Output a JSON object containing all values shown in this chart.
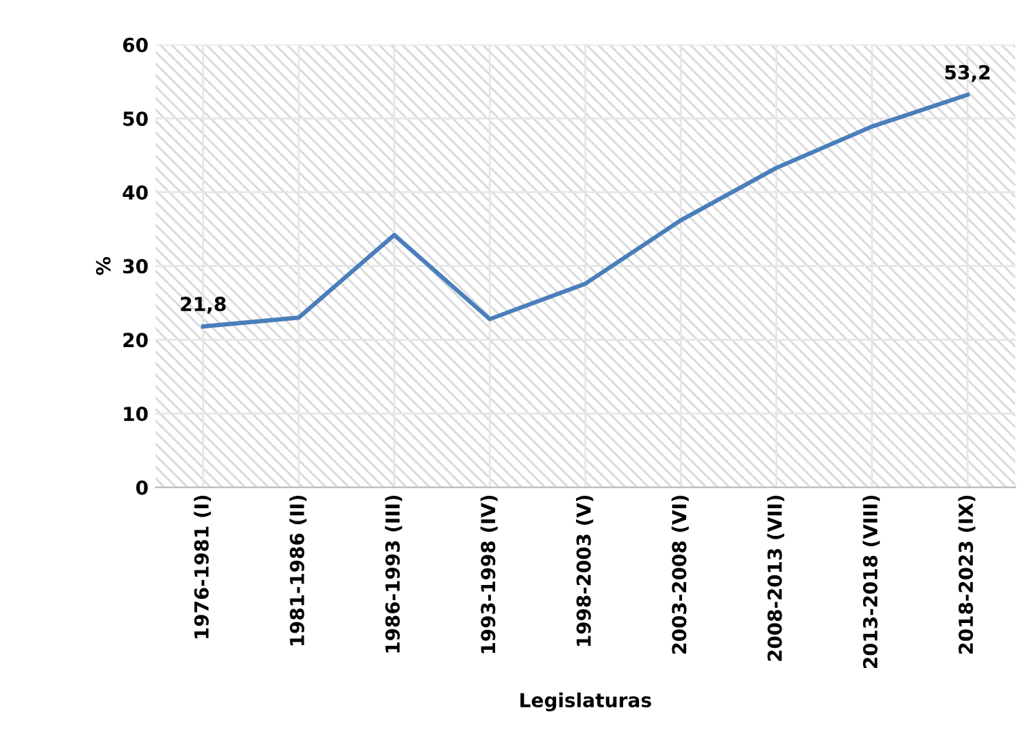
{
  "chart_data": {
    "type": "line",
    "xlabel": "Legislaturas",
    "ylabel": "%",
    "categories": [
      "1976-1981 (I)",
      "1981-1986 (II)",
      "1986-1993 (III)",
      "1993-1998 (IV)",
      "1998-2003 (V)",
      "2003-2008 (VI)",
      "2008-2013 (VII)",
      "2013-2018 (VIII)",
      "2018-2023 (IX)"
    ],
    "series": [
      {
        "color": "#4a7ebb",
        "values": [
          21.8,
          23.0,
          34.2,
          22.8,
          27.6,
          36.2,
          43.3,
          48.9,
          53.2
        ],
        "value_labels": [
          "21,8",
          null,
          null,
          null,
          null,
          null,
          null,
          null,
          "53,2"
        ]
      }
    ],
    "ylim": [
      0,
      60
    ],
    "yticks": [
      0,
      10,
      20,
      30,
      40,
      50,
      60
    ],
    "grid": true,
    "marker": "none",
    "line_style": "solid"
  }
}
